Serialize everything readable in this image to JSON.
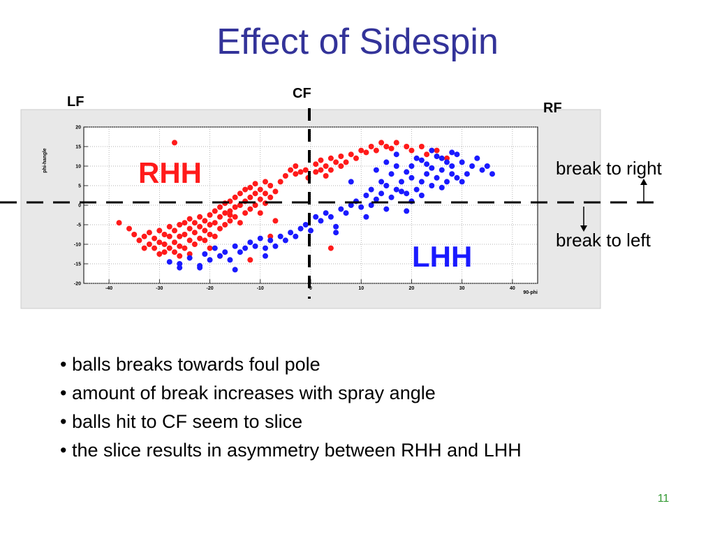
{
  "slide": {
    "title": "Effect of Sidespin",
    "page_number": "11",
    "bullets": [
      "balls breaks towards foul pole",
      "amount of break increases with spray angle",
      "balls hit to CF seem to slice",
      "the slice results in asymmetry between RHH and LHH"
    ]
  },
  "field_labels": {
    "left": "LF",
    "center": "CF",
    "right": "RF"
  },
  "annotations": {
    "break_right": "break to right",
    "break_left": "break to left"
  },
  "colors": {
    "rhh": "#ff1a1a",
    "lhh": "#1a1aff",
    "title": "#333399",
    "page_number": "#339933",
    "panel": "#e8e8e8"
  },
  "chart_data": {
    "type": "scatter",
    "ylabel": "phi-hangle",
    "xlabel": "90-phi",
    "xlim": [
      -45,
      45
    ],
    "ylim": [
      -20,
      20
    ],
    "x_ticks": [
      -40,
      -30,
      -20,
      -10,
      0,
      10,
      20,
      30,
      40
    ],
    "y_ticks": [
      -20,
      -15,
      -10,
      -5,
      0,
      5,
      10,
      15,
      20
    ],
    "grid": true,
    "series": [
      {
        "name": "RHH",
        "color": "#ff1a1a",
        "points": [
          [
            -38,
            -4.5
          ],
          [
            -36,
            -6
          ],
          [
            -35,
            -7.5
          ],
          [
            -34,
            -9
          ],
          [
            -33,
            -8
          ],
          [
            -32,
            -10
          ],
          [
            -32,
            -7
          ],
          [
            -31,
            -11
          ],
          [
            -31,
            -8.5
          ],
          [
            -30,
            -12.5
          ],
          [
            -30,
            -9.5
          ],
          [
            -30,
            -6.5
          ],
          [
            -29,
            -12
          ],
          [
            -29,
            -10
          ],
          [
            -29,
            -7.5
          ],
          [
            -28,
            -11
          ],
          [
            -28,
            -8
          ],
          [
            -28,
            -5.5
          ],
          [
            -27,
            -12
          ],
          [
            -27,
            -9.5
          ],
          [
            -27,
            -6.5
          ],
          [
            -26,
            -10.5
          ],
          [
            -26,
            -8
          ],
          [
            -26,
            -5
          ],
          [
            -25,
            -11
          ],
          [
            -25,
            -7.5
          ],
          [
            -25,
            -4.5
          ],
          [
            -24,
            -9
          ],
          [
            -24,
            -6
          ],
          [
            -24,
            -3.5
          ],
          [
            -23,
            -10
          ],
          [
            -23,
            -7
          ],
          [
            -23,
            -4.5
          ],
          [
            -22,
            -8.5
          ],
          [
            -22,
            -5.5
          ],
          [
            -22,
            -3
          ],
          [
            -21,
            -9
          ],
          [
            -21,
            -6.5
          ],
          [
            -21,
            -4
          ],
          [
            -20,
            -7.5
          ],
          [
            -20,
            -5
          ],
          [
            -20,
            -2.5
          ],
          [
            -19,
            -8
          ],
          [
            -19,
            -4.5
          ],
          [
            -19,
            -1.5
          ],
          [
            -18,
            -6
          ],
          [
            -18,
            -3
          ],
          [
            -18,
            -0.5
          ],
          [
            -17,
            -5
          ],
          [
            -17,
            -2
          ],
          [
            -17,
            0.5
          ],
          [
            -16,
            -4
          ],
          [
            -16,
            -1.5
          ],
          [
            -16,
            1
          ],
          [
            -15,
            -3
          ],
          [
            -15,
            -0.5
          ],
          [
            -15,
            2
          ],
          [
            -14,
            -4.5
          ],
          [
            -14,
            0
          ],
          [
            -14,
            3
          ],
          [
            -13,
            -2
          ],
          [
            -13,
            1
          ],
          [
            -13,
            4
          ],
          [
            -12,
            -1
          ],
          [
            -12,
            2
          ],
          [
            -12,
            4.5
          ],
          [
            -11,
            0
          ],
          [
            -11,
            3
          ],
          [
            -11,
            5.5
          ],
          [
            -10,
            -2
          ],
          [
            -10,
            1.5
          ],
          [
            -10,
            4
          ],
          [
            -9,
            0.5
          ],
          [
            -9,
            3
          ],
          [
            -9,
            6
          ],
          [
            -8,
            2
          ],
          [
            -8,
            5
          ],
          [
            -7,
            -4
          ],
          [
            -7,
            3.5
          ],
          [
            -6,
            6
          ],
          [
            -5,
            7.5
          ],
          [
            -4,
            9
          ],
          [
            -3,
            8
          ],
          [
            -3,
            10
          ],
          [
            -2,
            8.5
          ],
          [
            -1,
            9
          ],
          [
            -0.5,
            7
          ],
          [
            1,
            8.5
          ],
          [
            1,
            10.5
          ],
          [
            2,
            9
          ],
          [
            2,
            11.5
          ],
          [
            3,
            10
          ],
          [
            3,
            7.5
          ],
          [
            4,
            12
          ],
          [
            4,
            9
          ],
          [
            5,
            11
          ],
          [
            6,
            10
          ],
          [
            6,
            12.5
          ],
          [
            7,
            11
          ],
          [
            8,
            13
          ],
          [
            9,
            12
          ],
          [
            10,
            14
          ],
          [
            11,
            13.5
          ],
          [
            12,
            15
          ],
          [
            13,
            14
          ],
          [
            14,
            16
          ],
          [
            15,
            15
          ],
          [
            16,
            14.5
          ],
          [
            17,
            16
          ],
          [
            19,
            15
          ],
          [
            20,
            14
          ],
          [
            22,
            15
          ],
          [
            23,
            13
          ],
          [
            25,
            14
          ],
          [
            27,
            12
          ],
          [
            -27,
            16
          ],
          [
            -12,
            -14
          ],
          [
            -18,
            -13
          ],
          [
            -24,
            -12.5
          ],
          [
            -33,
            -11
          ],
          [
            4,
            -11
          ],
          [
            -8,
            -8
          ],
          [
            -16,
            -2.5
          ],
          [
            -20,
            -11
          ],
          [
            -26,
            -13
          ]
        ]
      },
      {
        "name": "LHH",
        "color": "#1a1aff",
        "points": [
          [
            -28,
            -14.5
          ],
          [
            -26,
            -15
          ],
          [
            -24,
            -13.5
          ],
          [
            -22,
            -16
          ],
          [
            -21,
            -12.5
          ],
          [
            -20,
            -14
          ],
          [
            -19,
            -11
          ],
          [
            -18,
            -13
          ],
          [
            -17,
            -12
          ],
          [
            -16,
            -14
          ],
          [
            -15,
            -10.5
          ],
          [
            -14,
            -12
          ],
          [
            -13,
            -11
          ],
          [
            -12,
            -9.5
          ],
          [
            -11,
            -10.5
          ],
          [
            -10,
            -8.5
          ],
          [
            -9,
            -11
          ],
          [
            -8,
            -9
          ],
          [
            -7,
            -10.5
          ],
          [
            -6,
            -8
          ],
          [
            -5,
            -9
          ],
          [
            -4,
            -7
          ],
          [
            -3,
            -8
          ],
          [
            -2,
            -6
          ],
          [
            -1,
            -5
          ],
          [
            0,
            -6.5
          ],
          [
            1,
            -3
          ],
          [
            2,
            -4
          ],
          [
            3,
            -2
          ],
          [
            4,
            -3
          ],
          [
            5,
            -5.5
          ],
          [
            6,
            -1
          ],
          [
            7,
            -2
          ],
          [
            8,
            0
          ],
          [
            9,
            1
          ],
          [
            10,
            -0.5
          ],
          [
            11,
            2.5
          ],
          [
            12,
            0
          ],
          [
            12,
            4
          ],
          [
            13,
            1.5
          ],
          [
            14,
            3
          ],
          [
            15,
            -1
          ],
          [
            15,
            5
          ],
          [
            16,
            2
          ],
          [
            17,
            4
          ],
          [
            18,
            6
          ],
          [
            19,
            3
          ],
          [
            20,
            7
          ],
          [
            21,
            4
          ],
          [
            22,
            6
          ],
          [
            23,
            8
          ],
          [
            24,
            5
          ],
          [
            25,
            7
          ],
          [
            26,
            9
          ],
          [
            27,
            6
          ],
          [
            28,
            10
          ],
          [
            29,
            7
          ],
          [
            30,
            11
          ],
          [
            31,
            8
          ],
          [
            32,
            10
          ],
          [
            33,
            12
          ],
          [
            34,
            9
          ],
          [
            35,
            10
          ],
          [
            36,
            8
          ],
          [
            13,
            9
          ],
          [
            15,
            11
          ],
          [
            17,
            10
          ],
          [
            19,
            8.5
          ],
          [
            21,
            12
          ],
          [
            23,
            10.5
          ],
          [
            25,
            12.5
          ],
          [
            27,
            11
          ],
          [
            29,
            13
          ],
          [
            14,
            6
          ],
          [
            16,
            8
          ],
          [
            18,
            3.5
          ],
          [
            20,
            1
          ],
          [
            22,
            2.5
          ],
          [
            24,
            9.5
          ],
          [
            26,
            4.5
          ],
          [
            28,
            8
          ],
          [
            30,
            6
          ],
          [
            17,
            13
          ],
          [
            20,
            10
          ],
          [
            22,
            11.5
          ],
          [
            24,
            14
          ],
          [
            26,
            12
          ],
          [
            28,
            13.5
          ],
          [
            19,
            -1.5
          ],
          [
            11,
            -3
          ],
          [
            -26,
            -16
          ],
          [
            -22,
            -15.5
          ],
          [
            -15,
            -16.5
          ],
          [
            -9,
            -13
          ],
          [
            8,
            6
          ],
          [
            5,
            -7
          ]
        ]
      }
    ]
  }
}
